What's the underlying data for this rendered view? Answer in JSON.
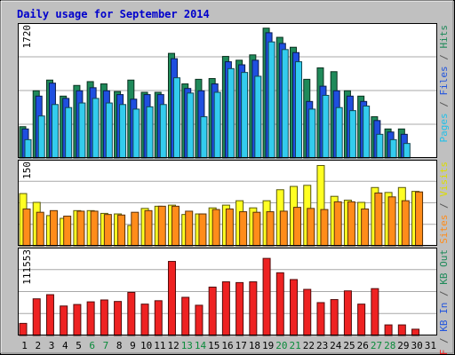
{
  "chart_data": {
    "type": "bar",
    "title": "Daily usage for September 2014",
    "categories": [
      "1",
      "2",
      "3",
      "4",
      "5",
      "6",
      "7",
      "8",
      "9",
      "10",
      "11",
      "12",
      "13",
      "14",
      "15",
      "16",
      "17",
      "18",
      "19",
      "20",
      "21",
      "22",
      "23",
      "24",
      "25",
      "26",
      "27",
      "28",
      "29",
      "30",
      "31"
    ],
    "weekend_days": [
      "6",
      "7",
      "13",
      "14",
      "20",
      "21",
      "27",
      "28"
    ],
    "colors": {
      "hits": "#1f8a5a",
      "files": "#1f4fe0",
      "pages": "#33ccee",
      "visits": "#ffff22",
      "sites": "#ff8c1a",
      "kbf": "#ee2222",
      "background": "#c0c0c0",
      "plot_background": "#ffffff",
      "title_color": "#0000cc",
      "weekend_label_color": "#0a8a3a",
      "weekday_label_color": "#000000"
    },
    "panels": [
      {
        "id": "top",
        "ylabel_max": "1720",
        "ymax": 1720,
        "legend": [
          {
            "text": "Pages",
            "color": "#22c0e8"
          },
          {
            "text": " / ",
            "color": "#555555"
          },
          {
            "text": "Files",
            "color": "#2255dd"
          },
          {
            "text": " / ",
            "color": "#555555"
          },
          {
            "text": "Hits",
            "color": "#1f8a5a"
          }
        ],
        "series": [
          {
            "name": "Hits",
            "color": "#1f8a5a",
            "values": [
              410,
              880,
              1020,
              810,
              950,
              1000,
              970,
              870,
              1020,
              860,
              860,
              1370,
              970,
              1030,
              1040,
              1330,
              1280,
              1350,
              1700,
              1580,
              1450,
              1030,
              1180,
              1130,
              880,
              810,
              540,
              380,
              380,
              0,
              0
            ]
          },
          {
            "name": "Files",
            "color": "#1f4fe0",
            "values": [
              380,
              810,
              980,
              780,
              880,
              920,
              880,
              830,
              770,
              830,
              830,
              1300,
              910,
              880,
              970,
              1260,
              1220,
              1280,
              1640,
              1500,
              1380,
              740,
              940,
              880,
              810,
              740,
              490,
              340,
              310,
              0,
              0
            ]
          },
          {
            "name": "Pages",
            "color": "#33ccee",
            "values": [
              240,
              550,
              700,
              660,
              720,
              780,
              720,
              700,
              640,
              670,
              700,
              1050,
              850,
              540,
              860,
              1170,
              1120,
              1070,
              1520,
              1420,
              1260,
              640,
              820,
              660,
              620,
              680,
              310,
              240,
              190,
              0,
              0
            ]
          }
        ]
      },
      {
        "id": "middle",
        "ylabel_max": "150",
        "ymax": 150,
        "legend": [
          {
            "text": "Sites",
            "color": "#ff8c1a"
          },
          {
            "text": " / ",
            "color": "#555555"
          },
          {
            "text": "Visits",
            "color": "#dddd00"
          }
        ],
        "series": [
          {
            "name": "Visits",
            "color": "#ffff22",
            "values": [
              95,
              79,
              55,
              50,
              64,
              64,
              59,
              58,
              37,
              68,
              72,
              74,
              57,
              58,
              69,
              74,
              82,
              69,
              82,
              102,
              108,
              110,
              146,
              90,
              83,
              79,
              106,
              97,
              106,
              99,
              0
            ]
          },
          {
            "name": "Sites",
            "color": "#ff8c1a",
            "values": [
              67,
              61,
              64,
              54,
              63,
              63,
              57,
              56,
              61,
              64,
              72,
              72,
              63,
              58,
              66,
              67,
              62,
              61,
              62,
              63,
              70,
              68,
              66,
              80,
              80,
              67,
              96,
              89,
              82,
              98,
              0
            ]
          }
        ]
      },
      {
        "id": "bottom",
        "ylabel_max": "111553",
        "ymax": 111553,
        "legend": [
          {
            "text": "KB F",
            "color": "#ee2222"
          },
          {
            "text": " / ",
            "color": "#555555"
          },
          {
            "text": "KB In",
            "color": "#2255dd"
          },
          {
            "text": " / ",
            "color": "#555555"
          },
          {
            "text": "KB Out",
            "color": "#1f8a5a"
          }
        ],
        "series": [
          {
            "name": "KB F",
            "color": "#ee2222",
            "values": [
              16000,
              48500,
              54000,
              39000,
              41000,
              44500,
              47000,
              45000,
              57000,
              41500,
              46000,
              98000,
              50500,
              40000,
              64000,
              71000,
              70000,
              71000,
              102000,
              83000,
              74000,
              61000,
              43500,
              47500,
              59000,
              41500,
              62000,
              14000,
              14000,
              8300,
              0
            ]
          }
        ]
      }
    ]
  }
}
